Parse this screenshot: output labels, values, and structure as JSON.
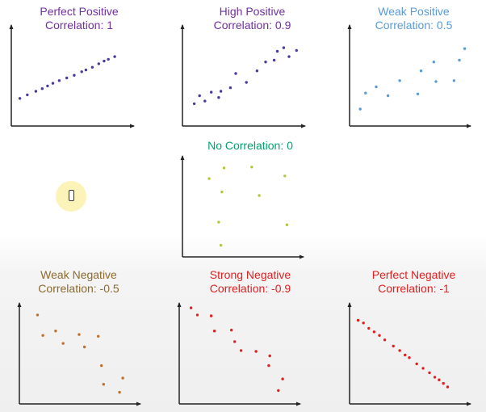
{
  "chart_data": [
    {
      "type": "scatter",
      "title_lines": [
        "Perfect Positive",
        "Correlation: 1"
      ],
      "title_color": "#7030a0",
      "point_color": "#4a3a9a",
      "xlim": [
        0,
        10
      ],
      "ylim": [
        0,
        10
      ],
      "points": [
        [
          0.5,
          2.2
        ],
        [
          1.2,
          2.6
        ],
        [
          2.0,
          3.0
        ],
        [
          2.6,
          3.3
        ],
        [
          3.1,
          3.6
        ],
        [
          3.6,
          3.9
        ],
        [
          4.2,
          4.2
        ],
        [
          4.9,
          4.5
        ],
        [
          5.6,
          4.8
        ],
        [
          6.3,
          5.2
        ],
        [
          6.7,
          5.4
        ],
        [
          7.3,
          5.7
        ],
        [
          7.9,
          6.1
        ],
        [
          8.4,
          6.4
        ],
        [
          8.8,
          6.6
        ],
        [
          9.4,
          6.9
        ]
      ]
    },
    {
      "type": "scatter",
      "title_lines": [
        "High Positive",
        "Correlation: 0.9"
      ],
      "title_color": "#7030a0",
      "point_color": "#4a3a9a",
      "xlim": [
        0,
        10
      ],
      "ylim": [
        0,
        10
      ],
      "points": [
        [
          0.8,
          1.6
        ],
        [
          1.3,
          2.5
        ],
        [
          1.8,
          1.9
        ],
        [
          2.4,
          2.9
        ],
        [
          3.1,
          2.3
        ],
        [
          3.3,
          3.0
        ],
        [
          4.2,
          3.4
        ],
        [
          4.7,
          5.0
        ],
        [
          5.7,
          4.0
        ],
        [
          6.7,
          5.3
        ],
        [
          7.5,
          6.3
        ],
        [
          8.3,
          6.5
        ],
        [
          8.6,
          7.5
        ],
        [
          9.2,
          7.9
        ],
        [
          9.7,
          6.9
        ],
        [
          10.4,
          7.6
        ]
      ]
    },
    {
      "type": "scatter",
      "title_lines": [
        "Weak Positive",
        "Correlation: 0.5"
      ],
      "title_color": "#5b9bd5",
      "point_color": "#5b9bd5",
      "xlim": [
        0,
        10
      ],
      "ylim": [
        0,
        10
      ],
      "points": [
        [
          0.7,
          1.0
        ],
        [
          1.2,
          2.8
        ],
        [
          2.2,
          3.5
        ],
        [
          3.3,
          2.5
        ],
        [
          4.4,
          4.2
        ],
        [
          6.1,
          2.7
        ],
        [
          6.4,
          5.3
        ],
        [
          7.6,
          6.3
        ],
        [
          7.8,
          4.1
        ],
        [
          9.5,
          4.2
        ],
        [
          10.0,
          6.5
        ],
        [
          10.5,
          7.8
        ]
      ]
    },
    {
      "type": "scatter",
      "title_lines": [
        "No Correlation: 0"
      ],
      "title_color": "#00a36c",
      "point_color": "#b5c43a",
      "xlim": [
        0,
        10
      ],
      "ylim": [
        0,
        10
      ],
      "points": [
        [
          2.2,
          7.9
        ],
        [
          3.1,
          3.0
        ],
        [
          3.4,
          6.4
        ],
        [
          3.6,
          9.1
        ],
        [
          6.2,
          9.2
        ],
        [
          6.9,
          6.0
        ],
        [
          9.3,
          8.2
        ],
        [
          9.5,
          2.7
        ],
        [
          3.3,
          0.4
        ]
      ]
    },
    {
      "type": "scatter",
      "title_lines": [
        "Weak Negative",
        "Correlation: -0.5"
      ],
      "title_color": "#8b6a2e",
      "point_color": "#c0702a",
      "xlim": [
        0,
        10
      ],
      "ylim": [
        0,
        10
      ],
      "points": [
        [
          1.4,
          9.1
        ],
        [
          1.9,
          6.8
        ],
        [
          3.1,
          7.3
        ],
        [
          3.8,
          5.9
        ],
        [
          5.3,
          6.9
        ],
        [
          5.8,
          5.5
        ],
        [
          7.1,
          6.7
        ],
        [
          7.4,
          3.4
        ],
        [
          7.6,
          1.3
        ],
        [
          9.1,
          0.4
        ],
        [
          9.4,
          2.0
        ]
      ]
    },
    {
      "type": "scatter",
      "title_lines": [
        "Strong Negative",
        "Correlation: -0.9"
      ],
      "title_color": "#e02020",
      "point_color": "#e02020",
      "xlim": [
        0,
        10
      ],
      "ylim": [
        0,
        10
      ],
      "points": [
        [
          0.8,
          9.9
        ],
        [
          1.4,
          9.1
        ],
        [
          2.7,
          9.0
        ],
        [
          3.0,
          7.3
        ],
        [
          4.6,
          7.4
        ],
        [
          4.9,
          6.1
        ],
        [
          5.5,
          5.1
        ],
        [
          6.9,
          5.0
        ],
        [
          8.1,
          3.4
        ],
        [
          8.2,
          4.5
        ],
        [
          9.0,
          0.6
        ],
        [
          9.4,
          1.9
        ]
      ]
    },
    {
      "type": "scatter",
      "title_lines": [
        "Perfect Negative",
        "Correlation: -1"
      ],
      "title_color": "#e02020",
      "point_color": "#e02020",
      "xlim": [
        0,
        10
      ],
      "ylim": [
        0,
        10
      ],
      "points": [
        [
          0.5,
          8.5
        ],
        [
          1.0,
          8.2
        ],
        [
          1.5,
          7.6
        ],
        [
          2.0,
          7.2
        ],
        [
          2.5,
          6.8
        ],
        [
          3.0,
          6.3
        ],
        [
          3.8,
          5.6
        ],
        [
          4.4,
          5.1
        ],
        [
          4.9,
          4.6
        ],
        [
          5.3,
          4.3
        ],
        [
          6.0,
          3.6
        ],
        [
          6.6,
          3.1
        ],
        [
          7.2,
          2.6
        ],
        [
          7.7,
          2.1
        ],
        [
          8.1,
          1.8
        ],
        [
          8.5,
          1.4
        ],
        [
          8.9,
          1.0
        ]
      ]
    }
  ]
}
